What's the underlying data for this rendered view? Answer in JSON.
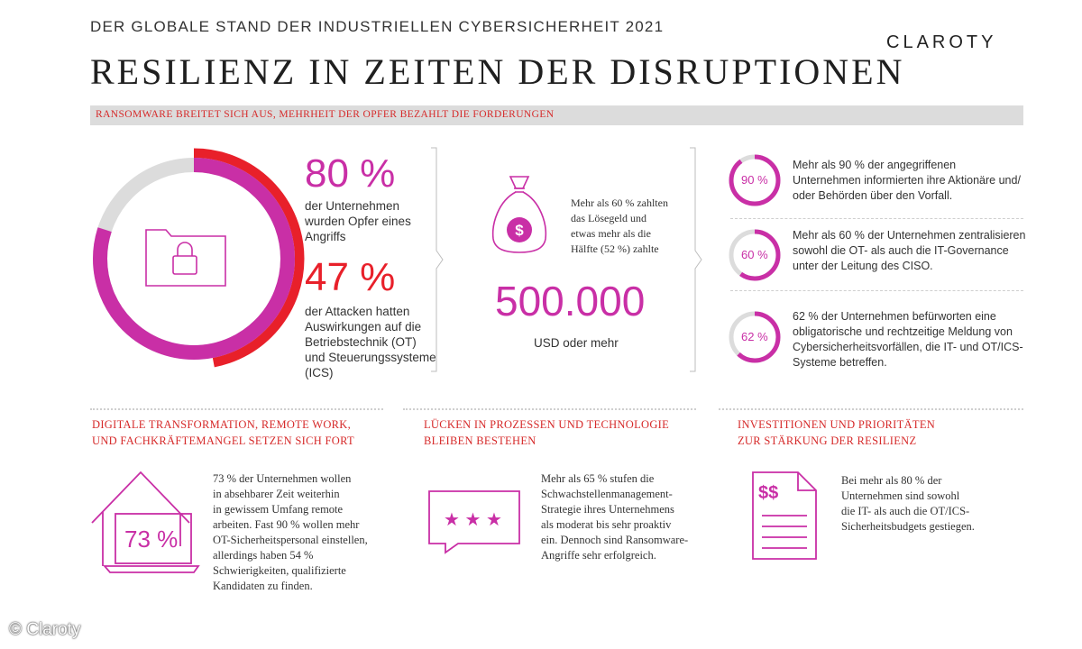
{
  "header": {
    "kicker": "DER GLOBALE STAND DER INDUSTRIELLEN CYBERSICHERHEIT 2021",
    "title": "RESILIENZ IN ZEITEN DER DISRUPTIONEN",
    "logo": "CLAROTY"
  },
  "colors": {
    "magenta": "#c92fa6",
    "red": "#e8202a",
    "gray": "#dcdcdc"
  },
  "ransomware": {
    "band": "RANSOMWARE BREITET SICH AUS, MEHRHEIT DER OPFER BEZAHLT DIE FORDERUNGEN",
    "ring": {
      "outer_magenta_percent": 80,
      "inner_red_percent": 47
    },
    "stat1": {
      "value": "80 %",
      "text": [
        "der Unternehmen",
        "wurden Opfer eines",
        "Angriffs"
      ]
    },
    "stat2": {
      "value": "47 %",
      "text": [
        "der Attacken hatten",
        "Auswirkungen auf die",
        "Betriebstechnik (OT)",
        "und Steuerungssysteme",
        "(ICS)"
      ]
    },
    "ransom_text": [
      "Mehr als 60 % zahlten",
      "das Lösegeld und",
      "etwas mehr als die",
      "Hälfte (52 %) zahlte"
    ],
    "ransom_amount": "500.000",
    "ransom_unit": "USD oder mehr",
    "circles": [
      {
        "label": "90 %",
        "percent": 90,
        "text": [
          "Mehr als 90 % der angegriffenen",
          "Unternehmen informierten ihre Aktionäre und/",
          "oder Behörden über den Vorfall."
        ]
      },
      {
        "label": "60 %",
        "percent": 60,
        "text": [
          "Mehr als 60 % der Unternehmen zentralisieren",
          "sowohl die OT- als auch die IT-Governance",
          "unter der Leitung des CISO."
        ]
      },
      {
        "label": "62 %",
        "percent": 62,
        "text": [
          "62 % der Unternehmen befürworten eine",
          "obligatorische und rechtzeitige Meldung von",
          "Cybersicherheitsvorfällen, die IT- und OT/ICS-",
          "Systeme betreffen."
        ]
      }
    ]
  },
  "bottom": [
    {
      "heading": [
        "DIGITALE TRANSFORMATION, REMOTE WORK,",
        "UND FACHKRÄFTEMANGEL SETZEN SICH FORT"
      ],
      "icon_value": "73 %",
      "text": [
        "73 % der Unternehmen wollen",
        "in absehbarer Zeit weiterhin",
        "in gewissem Umfang remote",
        "arbeiten. Fast 90 % wollen mehr",
        "OT-Sicherheitspersonal einstellen,",
        "allerdings haben 54 %",
        "Schwierigkeiten, qualifizierte",
        "Kandidaten zu finden."
      ]
    },
    {
      "heading": [
        "LÜCKEN IN PROZESSEN UND TECHNOLOGIE",
        "BLEIBEN BESTEHEN"
      ],
      "stars": "★ ★ ★",
      "text": [
        "Mehr als 65 % stufen die",
        "Schwachstellenmanagement-",
        "Strategie ihres Unternehmens",
        "als moderat bis sehr proaktiv",
        "ein. Dennoch sind Ransomware-",
        "Angriffe sehr erfolgreich."
      ]
    },
    {
      "heading": [
        "INVESTITIONEN UND PRIORITÄTEN",
        "ZUR STÄRKUNG DER RESILIENZ"
      ],
      "icon_value": "$$",
      "text": [
        "Bei mehr als 80 % der",
        "Unternehmen sind sowohl",
        "die IT- als auch die OT/ICS-",
        "Sicherheitsbudgets gestiegen."
      ]
    }
  ],
  "footer": {
    "copyright": "© Claroty"
  }
}
